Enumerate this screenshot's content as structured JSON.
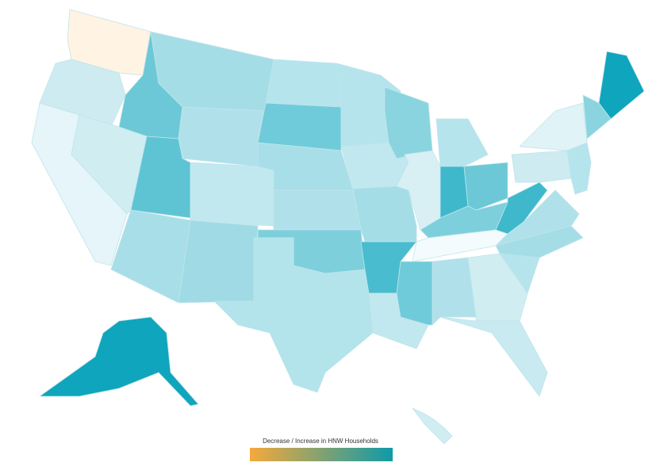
{
  "legend": {
    "title": "Decrease / Increase in HNW Households",
    "colors": [
      "#f5a93b",
      "#0f9aa8"
    ]
  },
  "regions": [
    {
      "color": "#fff3e4"
    },
    {
      "color": "#cdebf0"
    },
    {
      "color": "#e6f5f9"
    },
    {
      "color": "#d0edf2"
    },
    {
      "color": "#6cc8d6"
    },
    {
      "color": "#a5dde6"
    },
    {
      "color": "#b0e1ea"
    },
    {
      "color": "#5ec4d4"
    },
    {
      "color": "#c2e8ef"
    },
    {
      "color": "#a8dee7"
    },
    {
      "color": "#a0dbe5"
    },
    {
      "color": "#b6e4ec"
    },
    {
      "color": "#6fcbd9"
    },
    {
      "color": "#a8dee7"
    },
    {
      "color": "#b0e1ea"
    },
    {
      "color": "#7dcfdc"
    },
    {
      "color": "#b3e3eb"
    },
    {
      "color": "#b6e4ec"
    },
    {
      "color": "#c2e8ef"
    },
    {
      "color": "#a5dde6"
    },
    {
      "color": "#49bccf"
    },
    {
      "color": "#c2e8ef"
    },
    {
      "color": "#8ad4df"
    },
    {
      "color": "#d8f0f4"
    },
    {
      "color": "#b6e4ec"
    },
    {
      "color": "#3fb8cc"
    },
    {
      "color": "#6cc8d6"
    },
    {
      "color": "#7dcfdc"
    },
    {
      "color": "#f3fbfd"
    },
    {
      "color": "#6fcbd9"
    },
    {
      "color": "#b0e1ea"
    },
    {
      "color": "#d0edf2"
    },
    {
      "color": "#c8eaf0"
    },
    {
      "color": "#b6e4ec"
    },
    {
      "color": "#a5dde6"
    },
    {
      "color": "#b0e1ea"
    },
    {
      "color": "#3fb8cc"
    },
    {
      "color": "#cdebf0"
    },
    {
      "color": "#e0f3f7"
    },
    {
      "color": "#0fa5bc"
    },
    {
      "color": "#8ad4df"
    },
    {
      "color": "#b6e4ec"
    },
    {
      "color": "#0fa5bc"
    },
    {
      "color": "#d0edf2"
    }
  ]
}
